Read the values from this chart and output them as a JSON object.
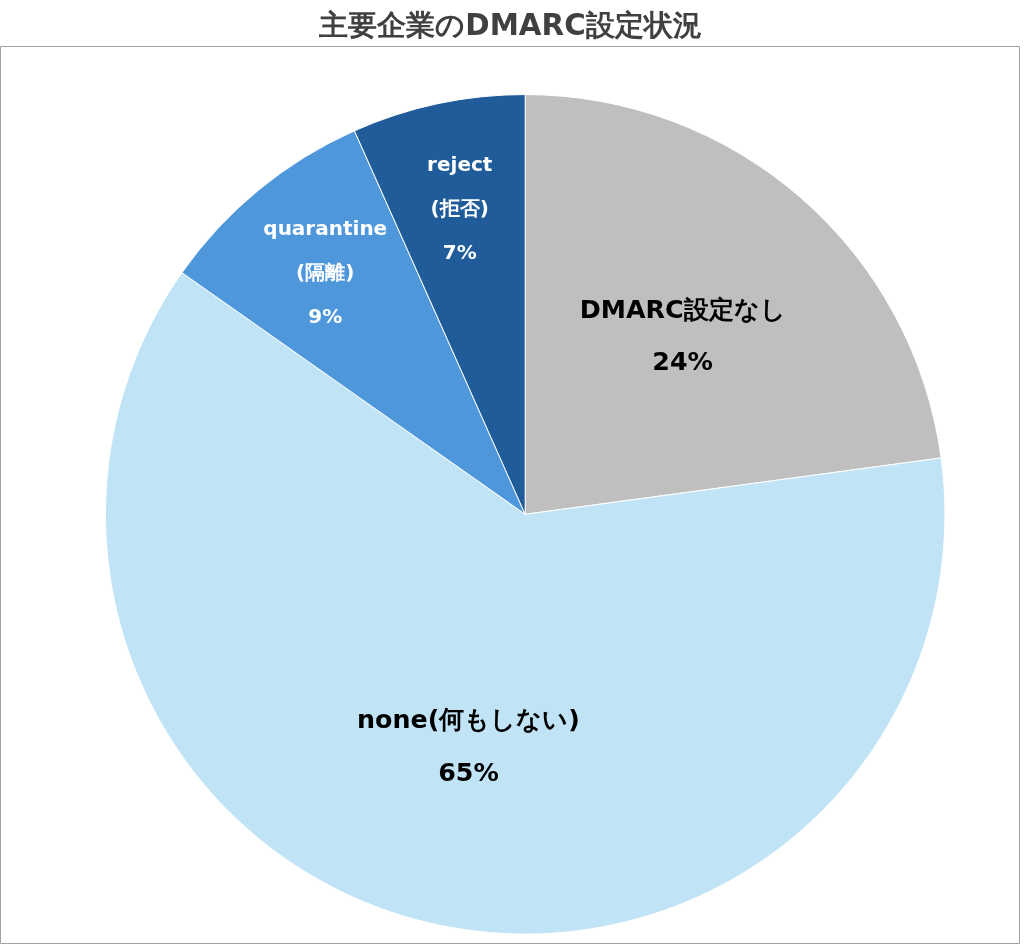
{
  "chart_data": {
    "type": "pie",
    "title": "主要企業のDMARC設定状況",
    "categories": [
      "DMARC設定なし",
      "none(何もしない)",
      "quarantine\n(隔離)",
      "reject\n(拒否)"
    ],
    "values": [
      24,
      65,
      9,
      7
    ],
    "value_labels": [
      "24%",
      "65%",
      "9%",
      "7%"
    ],
    "colors": [
      "#bfbfbf",
      "#c0e4f6",
      "#4f97db",
      "#1f5c99"
    ],
    "legend": false
  }
}
